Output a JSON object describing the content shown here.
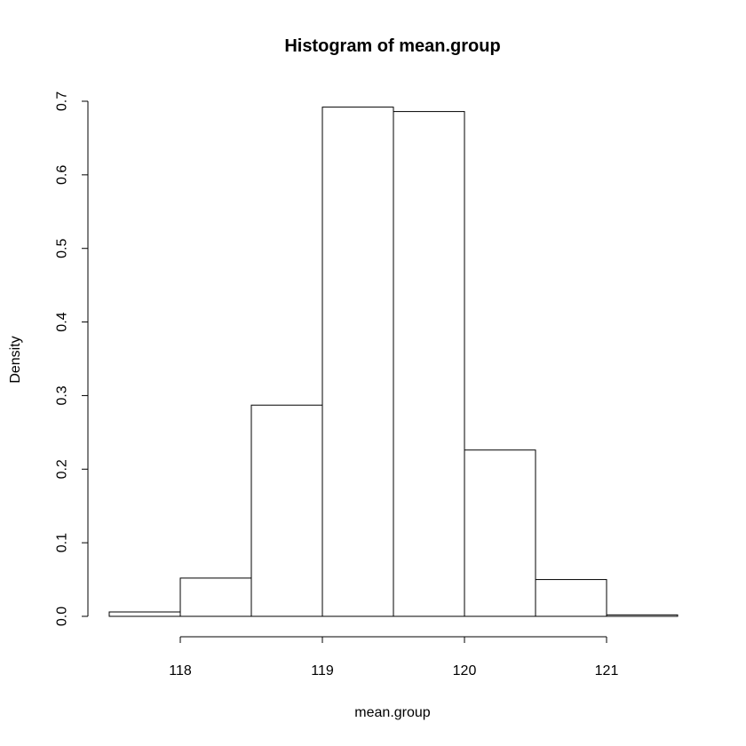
{
  "chart_data": {
    "type": "bar",
    "title": "Histogram of mean.group",
    "xlabel": "mean.group",
    "ylabel": "Density",
    "bins": [
      {
        "start": 117.5,
        "end": 118.0,
        "value": 0.006
      },
      {
        "start": 118.0,
        "end": 118.5,
        "value": 0.052
      },
      {
        "start": 118.5,
        "end": 119.0,
        "value": 0.287
      },
      {
        "start": 119.0,
        "end": 119.5,
        "value": 0.692
      },
      {
        "start": 119.5,
        "end": 120.0,
        "value": 0.686
      },
      {
        "start": 120.0,
        "end": 120.5,
        "value": 0.226
      },
      {
        "start": 120.5,
        "end": 121.0,
        "value": 0.05
      },
      {
        "start": 121.0,
        "end": 121.5,
        "value": 0.002
      }
    ],
    "x_ticks": [
      {
        "value": 118,
        "label": "118"
      },
      {
        "value": 119,
        "label": "119"
      },
      {
        "value": 120,
        "label": "120"
      },
      {
        "value": 121,
        "label": "121"
      }
    ],
    "y_ticks": [
      {
        "value": 0.0,
        "label": "0.0"
      },
      {
        "value": 0.1,
        "label": "0.1"
      },
      {
        "value": 0.2,
        "label": "0.2"
      },
      {
        "value": 0.3,
        "label": "0.3"
      },
      {
        "value": 0.4,
        "label": "0.4"
      },
      {
        "value": 0.5,
        "label": "0.5"
      },
      {
        "value": 0.6,
        "label": "0.6"
      },
      {
        "value": 0.7,
        "label": "0.7"
      }
    ],
    "xlim": [
      117.5,
      121.5
    ],
    "ylim": [
      0,
      0.7
    ],
    "grid": false
  }
}
